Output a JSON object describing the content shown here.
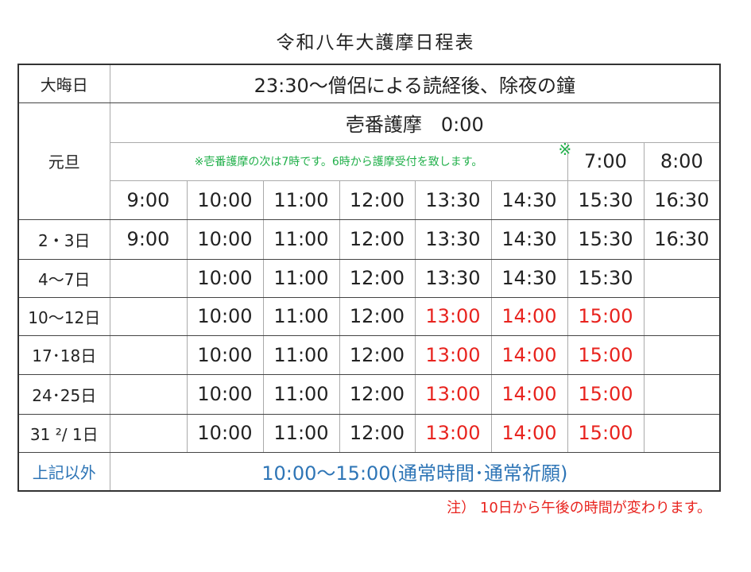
{
  "title": "令和八年大護摩日程表",
  "rows": {
    "omisoka": {
      "label": "大晦日",
      "text": "23:30〜僧侶による読経後、除夜の鐘"
    },
    "ganjitsu": {
      "label": "元旦",
      "first": "壱番護摩　0:00",
      "note": "※壱番護摩の次は7時です。6時から護摩受付を致します。",
      "mark": "※",
      "times_a": [
        "7:00",
        "8:00"
      ],
      "times_b": [
        "9:00",
        "10:00",
        "11:00",
        "12:00",
        "13:30",
        "14:30",
        "15:30",
        "16:30"
      ]
    },
    "d23": {
      "label": "2・3日",
      "times": [
        "9:00",
        "10:00",
        "11:00",
        "12:00",
        "13:30",
        "14:30",
        "15:30",
        "16:30"
      ]
    },
    "d47": {
      "label": "4〜7日",
      "times": [
        "",
        "10:00",
        "11:00",
        "12:00",
        "13:30",
        "14:30",
        "15:30",
        ""
      ]
    },
    "d1012": {
      "label": "10〜12日",
      "times": [
        "",
        "10:00",
        "11:00",
        "12:00",
        "13:00",
        "14:00",
        "15:00",
        ""
      ]
    },
    "d1718": {
      "label": "17･18日",
      "times": [
        "",
        "10:00",
        "11:00",
        "12:00",
        "13:00",
        "14:00",
        "15:00",
        ""
      ]
    },
    "d2425": {
      "label": "24･25日",
      "times": [
        "",
        "10:00",
        "11:00",
        "12:00",
        "13:00",
        "14:00",
        "15:00",
        ""
      ]
    },
    "d31": {
      "label": "31 ²/ 1日",
      "times": [
        "",
        "10:00",
        "11:00",
        "12:00",
        "13:00",
        "14:00",
        "15:00",
        ""
      ]
    },
    "other": {
      "label": "上記以外",
      "text": "10:00〜15:00(通常時間･通常祈願)"
    }
  },
  "footnote": "注） 10日から午後の時間が変わります。",
  "colors": {
    "red": "#e8231e",
    "blue": "#2e75b6",
    "green": "#22b04b"
  }
}
